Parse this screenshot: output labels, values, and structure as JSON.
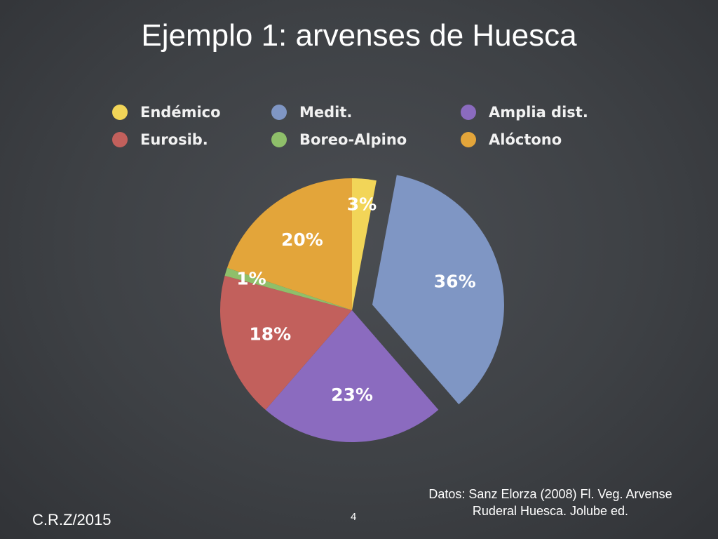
{
  "slide": {
    "title": "Ejemplo 1: arvenses de Huesca",
    "credit": "C.R.Z/2015",
    "page_number": "4",
    "source_line1": "Datos: Sanz Elorza (2008) Fl. Veg. Arvense",
    "source_line2": "Ruderal Huesca. Jolube ed."
  },
  "chart_data": {
    "type": "pie",
    "legend_position": "top",
    "legend": [
      {
        "name": "Endémico",
        "color": "#f2d558"
      },
      {
        "name": "Medit.",
        "color": "#7f96c4"
      },
      {
        "name": "Amplia dist.",
        "color": "#8b6bbf"
      },
      {
        "name": "Eurosib.",
        "color": "#c2605c"
      },
      {
        "name": "Boreo-Alpino",
        "color": "#8fbf6a"
      },
      {
        "name": "Alóctono",
        "color": "#e3a53a"
      }
    ],
    "slices": [
      {
        "name": "Endémico",
        "value": 3,
        "label": "3%",
        "color": "#f2d558",
        "exploded": false
      },
      {
        "name": "Medit.",
        "value": 36,
        "label": "36%",
        "color": "#7f96c4",
        "exploded": true
      },
      {
        "name": "Amplia dist.",
        "value": 23,
        "label": "23%",
        "color": "#8b6bbf",
        "exploded": false
      },
      {
        "name": "Eurosib.",
        "value": 18,
        "label": "18%",
        "color": "#c2605c",
        "exploded": false
      },
      {
        "name": "Boreo-Alpino",
        "value": 1,
        "label": "1%",
        "color": "#8fbf6a",
        "exploded": false
      },
      {
        "name": "Alóctono",
        "value": 20,
        "label": "20%",
        "color": "#e3a53a",
        "exploded": false
      }
    ]
  }
}
